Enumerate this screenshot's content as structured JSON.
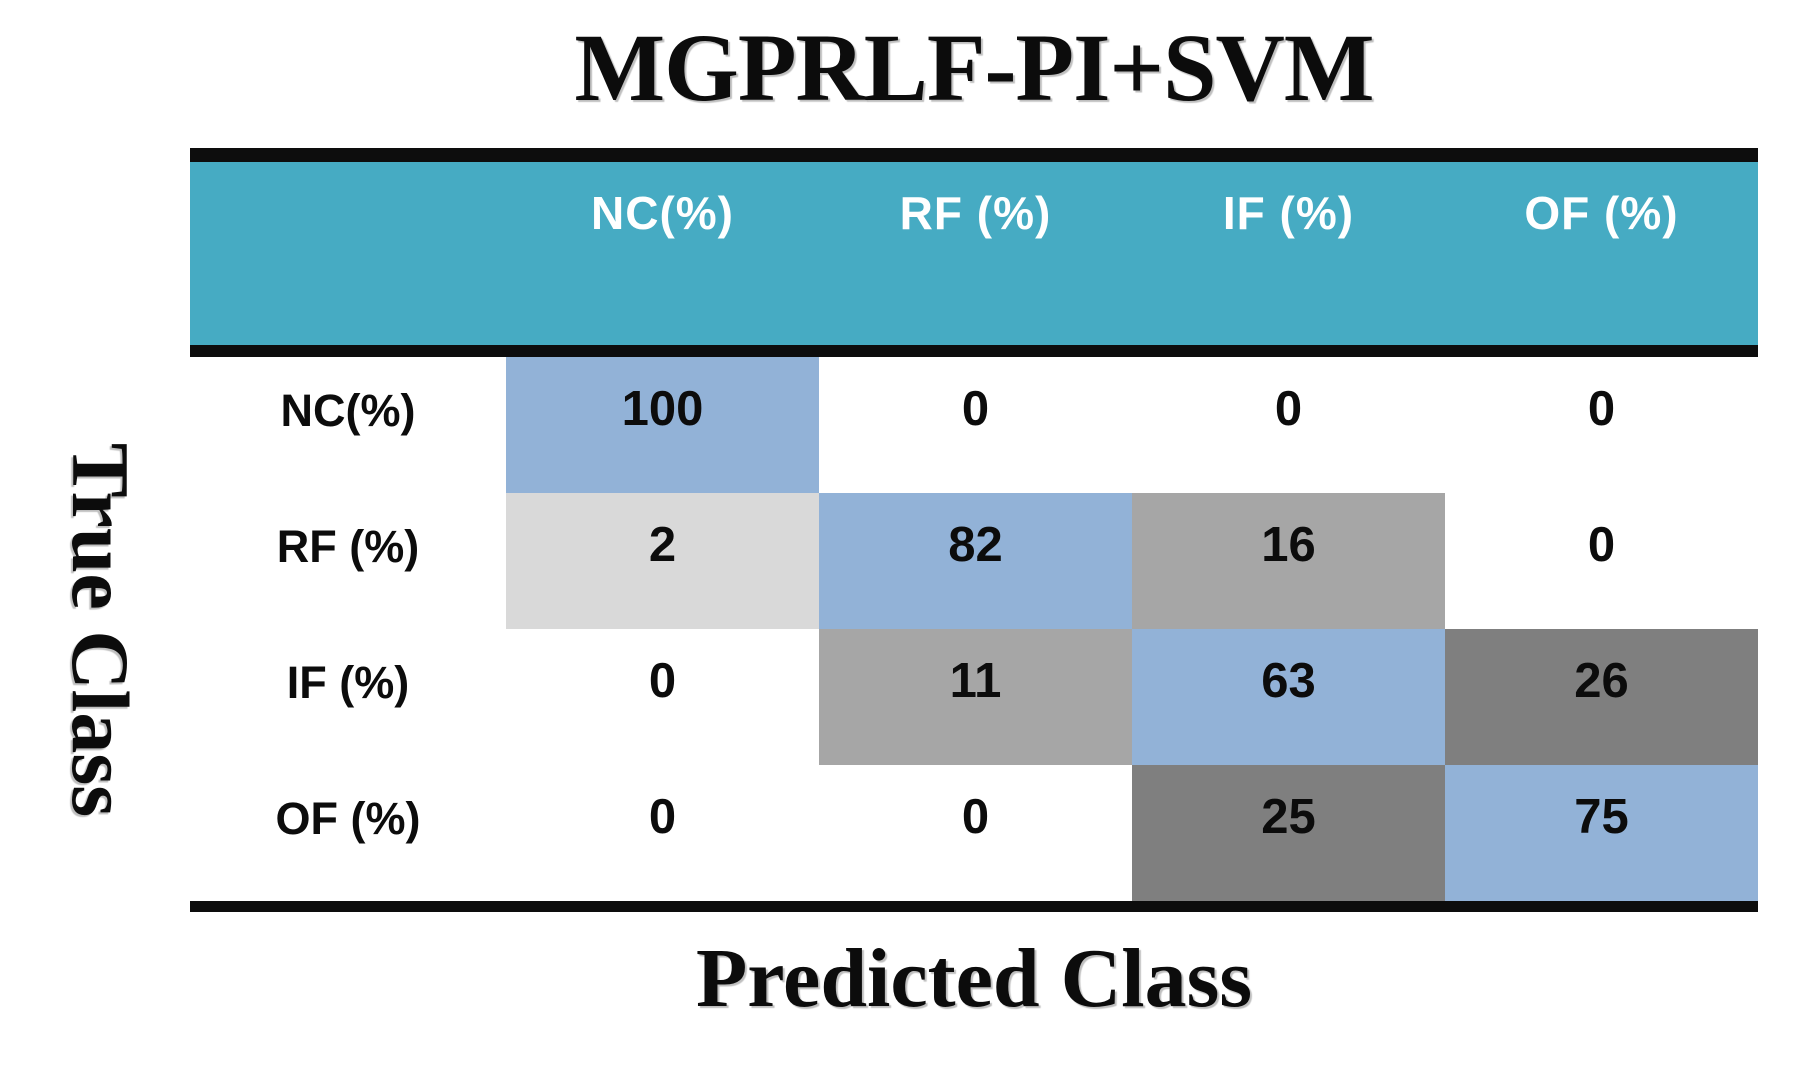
{
  "title": "MGPRLF-PI+SVM",
  "axes": {
    "y_label": "True Class",
    "x_label": "Predicted Class"
  },
  "matrix": {
    "column_headers": [
      "NC(%)",
      "RF (%)",
      "IF (%)",
      "OF (%)"
    ],
    "row_headers": [
      "NC(%)",
      "RF (%)",
      "IF (%)",
      "OF (%)"
    ],
    "values": [
      [
        100,
        0,
        0,
        0
      ],
      [
        2,
        82,
        16,
        0
      ],
      [
        0,
        11,
        63,
        26
      ],
      [
        0,
        0,
        25,
        75
      ]
    ],
    "cell_colors": [
      [
        "#92B2D7",
        "#FFFFFF",
        "#FFFFFF",
        "#FFFFFF"
      ],
      [
        "#D9D9D9",
        "#92B2D7",
        "#A6A6A6",
        "#FFFFFF"
      ],
      [
        "#FFFFFF",
        "#A6A6A6",
        "#92B2D7",
        "#7F7F7F"
      ],
      [
        "#FFFFFF",
        "#FFFFFF",
        "#7F7F7F",
        "#92B2D7"
      ]
    ]
  },
  "colors": {
    "header_bg": "#46ABC3",
    "header_text": "#FFFFFF",
    "diagonal_blue": "#92B2D7",
    "gray_light": "#D9D9D9",
    "gray_mid": "#A6A6A6",
    "gray_dark": "#7F7F7F",
    "zero_cell": "#FFFFFF",
    "rule_black": "#0D0D0D",
    "text_black": "#0C0C0C"
  },
  "chart_data": {
    "type": "heatmap",
    "title": "MGPRLF-PI+SVM",
    "xlabel": "Predicted Class",
    "ylabel": "True Class",
    "x_categories": [
      "NC(%)",
      "RF (%)",
      "IF (%)",
      "OF (%)"
    ],
    "y_categories": [
      "NC(%)",
      "RF (%)",
      "IF (%)",
      "OF (%)"
    ],
    "matrix": [
      [
        100,
        0,
        0,
        0
      ],
      [
        2,
        82,
        16,
        0
      ],
      [
        0,
        11,
        63,
        26
      ],
      [
        0,
        0,
        25,
        75
      ]
    ],
    "units": "percent",
    "legend": "none",
    "grid": "off",
    "notes": "Confusion matrix; diagonal cells shaded blue, off-diagonal magnitude shaded gray (light=low, dark=high), zeros white"
  }
}
